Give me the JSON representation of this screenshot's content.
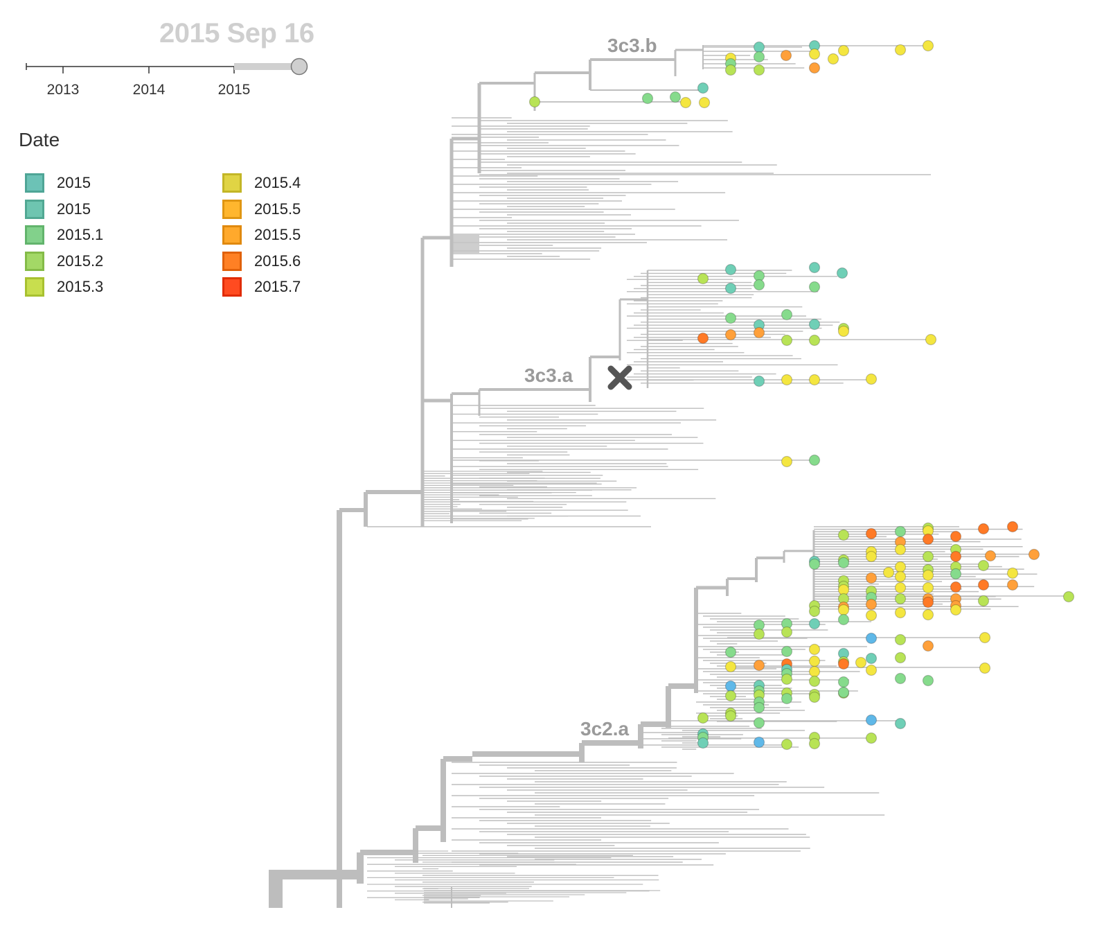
{
  "timeline": {
    "current_date": "2015 Sep 16",
    "ticks": [
      "2013",
      "2014",
      "2015"
    ]
  },
  "legend": {
    "title": "Date",
    "items": [
      {
        "label": "2015",
        "color": "#6cc2b6",
        "border": "#4fa596"
      },
      {
        "label": "2015",
        "color": "#6ec5b0",
        "border": "#51a893"
      },
      {
        "label": "2015.1",
        "color": "#82d18b",
        "border": "#62b46c"
      },
      {
        "label": "2015.2",
        "color": "#a3d866",
        "border": "#84bb48"
      },
      {
        "label": "2015.3",
        "color": "#c8de4e",
        "border": "#a8c130"
      },
      {
        "label": "2015.4",
        "color": "#e0d444",
        "border": "#c3b626"
      },
      {
        "label": "2015.5",
        "color": "#ffb62e",
        "border": "#e09612"
      },
      {
        "label": "2015.5",
        "color": "#ffa92c",
        "border": "#e0890e"
      },
      {
        "label": "2015.6",
        "color": "#ff8024",
        "border": "#e06008"
      },
      {
        "label": "2015.7",
        "color": "#ff4b20",
        "border": "#e02b02"
      }
    ]
  },
  "tree": {
    "clades": [
      {
        "label": "3c3.b"
      },
      {
        "label": "3c3.a"
      },
      {
        "label": "3c2.a"
      }
    ],
    "node_colors": {
      "teal": "#6fcfb6",
      "green": "#86db8c",
      "lime": "#b8e356",
      "yellow": "#f4e640",
      "orange": "#ffa03a",
      "deep_orange": "#ff7a26",
      "blue": "#5fb8e8",
      "branch": "#bdbdbd"
    },
    "marker": "x-mark-icon"
  }
}
